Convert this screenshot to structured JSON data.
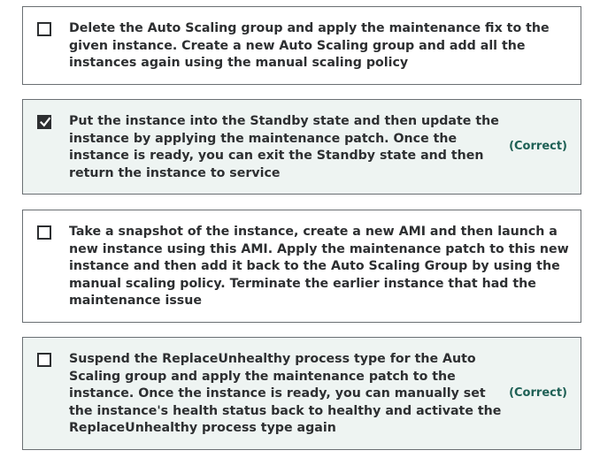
{
  "options": [
    {
      "text": "Delete the Auto Scaling group and apply the maintenance fix to the given instance. Create a new Auto Scaling group and add all the instances again using the manual scaling policy",
      "checked": false,
      "verdict": ""
    },
    {
      "text": "Put the instance into the Standby state and then update the instance by applying the maintenance patch. Once the instance is ready, you can exit the Standby state and then return the instance to service",
      "checked": true,
      "verdict": "(Correct)"
    },
    {
      "text": "Take a snapshot of the instance, create a new AMI and then launch a new instance using this AMI. Apply the maintenance patch to this new instance and then add it back to the Auto Scaling Group by using the manual scaling policy. Terminate the earlier instance that had the maintenance issue",
      "checked": false,
      "verdict": ""
    },
    {
      "text": "Suspend the ReplaceUnhealthy process type for the Auto Scaling group and apply the maintenance patch to the instance. Once the instance is ready, you can manually set the instance's health status back to healthy and activate the ReplaceUnhealthy process type again",
      "checked": false,
      "verdict": "(Correct)"
    }
  ],
  "colors": {
    "correct_background": "#eef4f2",
    "correct_text": "#1e6055",
    "border": "#6a6f73",
    "text": "#2d2f31"
  },
  "icons": {
    "checkbox_checked": "check-icon"
  }
}
